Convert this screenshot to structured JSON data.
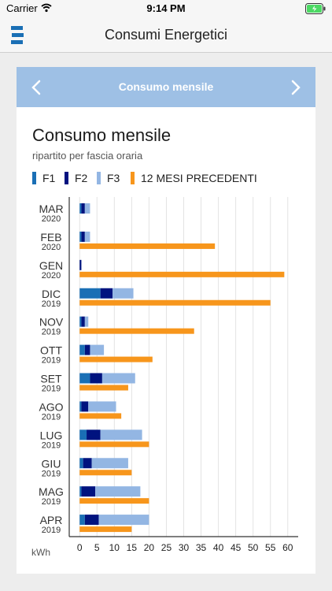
{
  "status_bar": {
    "carrier": "Carrier",
    "time": "9:14 PM"
  },
  "nav": {
    "title": "Consumi Energetici",
    "logo_icon": "brand-logo-icon"
  },
  "card_header": {
    "title": "Consumo mensile",
    "prev_icon": "chevron-left-icon",
    "next_icon": "chevron-right-icon"
  },
  "colors": {
    "F1": "#1a6fb5",
    "F2": "#00137f",
    "F3": "#93b6e3",
    "prev12": "#f7961c",
    "header": "#9ec0e5"
  },
  "chart_data": {
    "type": "bar",
    "orientation": "horizontal",
    "title": "Consumo mensile",
    "subtitle": "ripartito per fascia oraria",
    "legend": [
      "F1",
      "F2",
      "F3",
      "12 MESI PRECEDENTI"
    ],
    "xlabel": "kWh",
    "xlim": [
      -3,
      63
    ],
    "xticks": [
      0,
      5,
      10,
      15,
      20,
      25,
      30,
      35,
      40,
      45,
      50,
      55,
      60
    ],
    "grid": true,
    "categories": [
      {
        "month": "MAR",
        "year": "2020"
      },
      {
        "month": "FEB",
        "year": "2020"
      },
      {
        "month": "GEN",
        "year": "2020"
      },
      {
        "month": "DIC",
        "year": "2019"
      },
      {
        "month": "NOV",
        "year": "2019"
      },
      {
        "month": "OTT",
        "year": "2019"
      },
      {
        "month": "SET",
        "year": "2019"
      },
      {
        "month": "AGO",
        "year": "2019"
      },
      {
        "month": "LUG",
        "year": "2019"
      },
      {
        "month": "GIU",
        "year": "2019"
      },
      {
        "month": "MAG",
        "year": "2019"
      },
      {
        "month": "APR",
        "year": "2019"
      }
    ],
    "series": [
      {
        "name": "F1",
        "stack": "current",
        "values": [
          0.5,
          0.5,
          0,
          6,
          0.5,
          1.5,
          3,
          0.5,
          2,
          1,
          0.5,
          1.5
        ]
      },
      {
        "name": "F2",
        "stack": "current",
        "values": [
          1,
          1,
          0.5,
          3.5,
          1,
          1.5,
          3.5,
          2,
          4,
          2.5,
          4,
          4
        ]
      },
      {
        "name": "F3",
        "stack": "current",
        "values": [
          1.5,
          1.5,
          0,
          6,
          1,
          4,
          9.5,
          8,
          12,
          10.5,
          13,
          14.5
        ]
      },
      {
        "name": "12 MESI PRECEDENTI",
        "stack": "previous",
        "values": [
          null,
          39,
          59,
          55,
          33,
          21,
          14,
          12,
          20,
          15,
          20,
          15
        ]
      }
    ]
  }
}
